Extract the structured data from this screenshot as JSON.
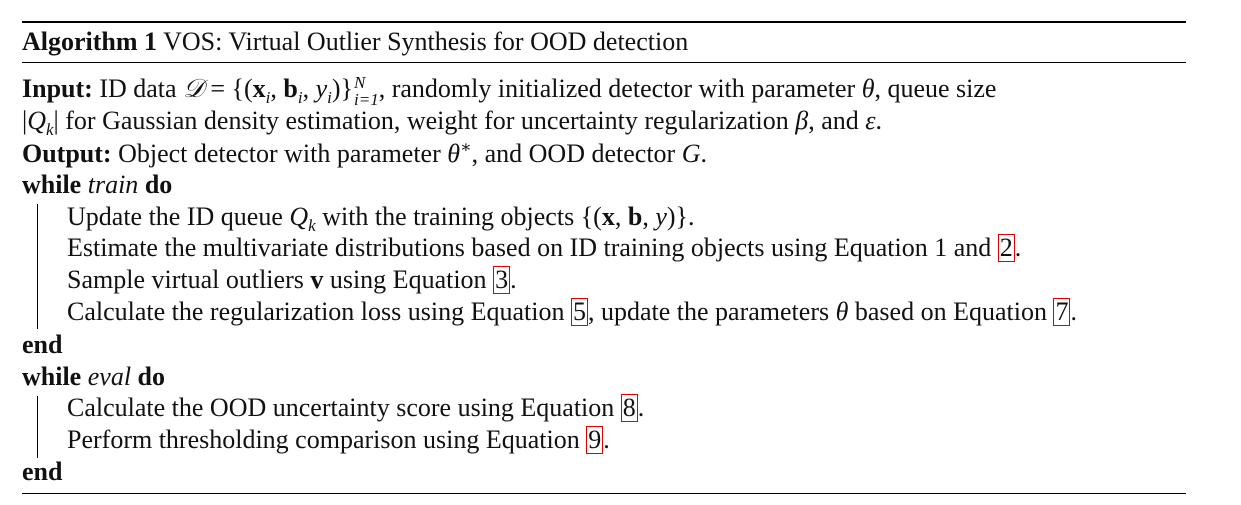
{
  "algorithm": {
    "label": "Algorithm 1",
    "title": "VOS: Virtual Outlier Synthesis for OOD detection"
  },
  "input": {
    "label": "Input:",
    "text_a": "ID data ",
    "text_b": ", randomly initialized detector with parameter ",
    "text_c": ", queue size",
    "text_d": " for Gaussian density estimation, weight for uncertainty regularization ",
    "text_e": ", and ",
    "text_f": "."
  },
  "output": {
    "label": "Output:",
    "text_a": " Object detector with parameter ",
    "text_b": ", and OOD detector ",
    "text_c": "."
  },
  "loop_train": {
    "keyword_while": "while",
    "condition": "train",
    "keyword_do": "do",
    "steps": [
      {
        "text": "Update the ID queue ",
        "mid": " with the training objects ",
        "end": "."
      },
      {
        "text": "Estimate the multivariate distributions based on ID training objects using Equation 1 and ",
        "ref": "2",
        "end": "."
      },
      {
        "text": "Sample virtual outliers ",
        "mid": " using Equation ",
        "ref": "3",
        "end": "."
      },
      {
        "text": "Calculate the regularization loss using Equation ",
        "ref": "5",
        "mid": ", update the parameters ",
        "mid2": " based on Equation ",
        "ref2": "7",
        "end": "."
      }
    ],
    "end_keyword": "end"
  },
  "loop_eval": {
    "keyword_while": "while",
    "condition": "eval",
    "keyword_do": "do",
    "steps": [
      {
        "text": "Calculate the OOD uncertainty score using Equation ",
        "ref": "8",
        "end": "."
      },
      {
        "text": "Perform thresholding comparison using Equation ",
        "ref": "9",
        "end": "."
      }
    ],
    "end_keyword": "end"
  },
  "math": {
    "D": "𝒟",
    "eq": " = ",
    "theta": "θ",
    "theta_star": "θ",
    "star": "∗",
    "beta": "β",
    "epsilon": "ε",
    "G": "G",
    "Qk": "Q",
    "k": "k",
    "N": "N",
    "i_eq_1": "i=1"
  },
  "colors": {
    "ref_border": "#e00000",
    "text": "#111111",
    "rule": "#000000"
  }
}
